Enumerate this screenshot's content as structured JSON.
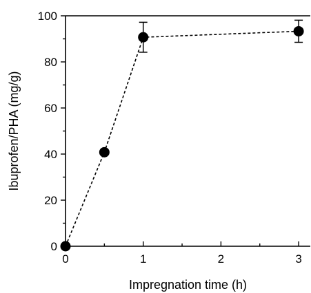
{
  "chart_data": {
    "type": "scatter",
    "xlabel": "Impregnation time (h)",
    "ylabel": "Ibuprofen/PHA (mg/g)",
    "xlim": [
      0,
      3.15
    ],
    "ylim": [
      0,
      100
    ],
    "x_ticks": [
      "0",
      "1",
      "2",
      "3"
    ],
    "x_tick_values": [
      0,
      1,
      2,
      3
    ],
    "x_minor_tick_values": [
      0.5,
      1.5,
      2.5
    ],
    "y_ticks": [
      "0",
      "20",
      "40",
      "60",
      "80",
      "100"
    ],
    "y_tick_values": [
      0,
      20,
      40,
      60,
      80,
      100
    ],
    "y_minor_tick_values": [
      10,
      30,
      50,
      70,
      90
    ],
    "grid": false,
    "series": [
      {
        "line_style": "dashed",
        "marker": "filled-circle",
        "color": "#000000",
        "x": [
          0,
          0.5,
          1,
          3
        ],
        "y": [
          0,
          40.8,
          90.7,
          93.3
        ],
        "error": [
          0,
          0,
          6.5,
          4.8
        ]
      }
    ]
  }
}
